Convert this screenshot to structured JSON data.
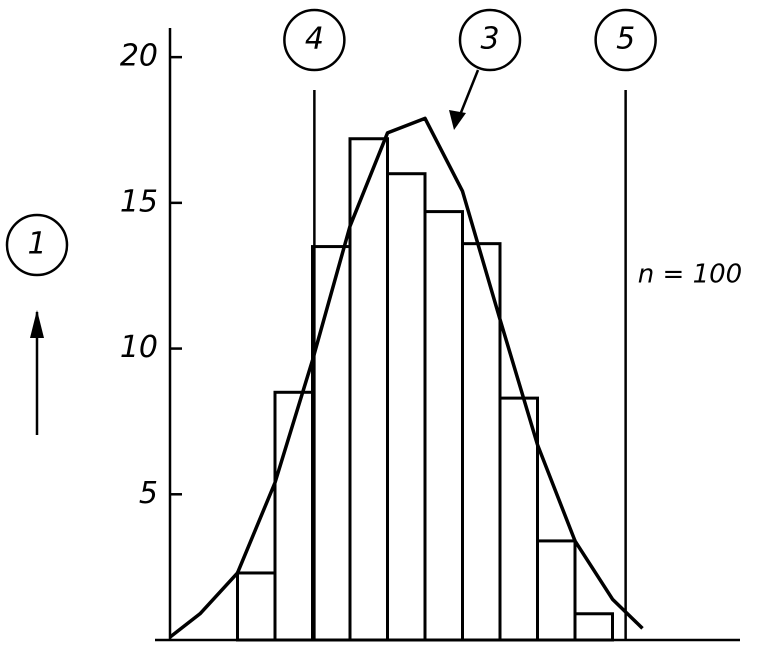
{
  "chart_data": {
    "type": "histogram",
    "bins": [
      0,
      1,
      2,
      3,
      4,
      5,
      6,
      7,
      8,
      9,
      10
    ],
    "values": [
      2.3,
      8.5,
      13.5,
      17.2,
      16,
      14.7,
      13.6,
      8.3,
      3.4,
      0.9
    ],
    "color": "#000000",
    "xlim": [
      -2.2,
      13.4
    ],
    "ylim": [
      0,
      21
    ],
    "yticks": [
      5,
      10,
      15,
      20
    ],
    "y_axis_label": "1",
    "annotation": "n = 100",
    "curve": {
      "label": "3",
      "x": [
        -1.8,
        -1,
        0,
        1,
        2,
        3,
        4,
        5,
        6,
        7,
        8,
        9,
        10,
        10.8
      ],
      "y": [
        0.1,
        0.9,
        2.3,
        5.4,
        9.6,
        14.2,
        17.4,
        17.9,
        15.4,
        11.0,
        6.7,
        3.4,
        1.4,
        0.4
      ]
    },
    "markers": [
      {
        "label": "4",
        "x": 2.05
      },
      {
        "label": "5",
        "x": 10.35
      }
    ]
  }
}
